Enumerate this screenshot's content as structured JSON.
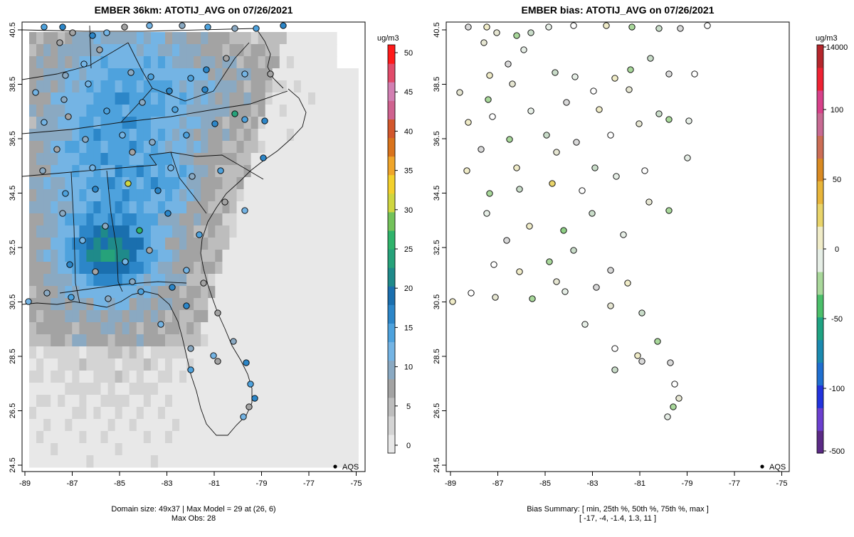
{
  "chart_data": [
    {
      "type": "heatmap",
      "title": "EMBER 36km: ATOTIJ_AVG on 07/26/2021",
      "units": "ug/m3",
      "x_ticks": [
        "-89",
        "-87",
        "-85",
        "-83",
        "-81",
        "-79",
        "-77",
        "-75"
      ],
      "y_ticks": [
        "40.5",
        "38.5",
        "36.5",
        "34.5",
        "32.5",
        "30.5",
        "28.5",
        "26.5",
        "24.5"
      ],
      "colorbar_ticks": [
        "0",
        "5",
        "10",
        "15",
        "20",
        "25",
        "30",
        "35",
        "40",
        "45",
        "50"
      ],
      "colorbar_range": [
        -1,
        51
      ],
      "colorbar_colors": [
        "#e8e8e8",
        "#d4d4d4",
        "#bdbdbd",
        "#a3a3a3",
        "#8aa9c2",
        "#74b4e4",
        "#4ea2dd",
        "#2c86c8",
        "#1a6fae",
        "#1f8a8a",
        "#26a27a",
        "#2fb36b",
        "#73c25a",
        "#cfd640",
        "#f3d02c",
        "#efa52a",
        "#d9731c",
        "#d2572c",
        "#cf628f",
        "#d27fb2",
        "#e14b6a",
        "#ff1a1a"
      ],
      "legend": "AQS",
      "footer_line1": "Domain size: 49x37 | Max Model = 29 at (26, 6)",
      "footer_line2": "Max Obs: 28",
      "domain": {
        "nx": 49,
        "ny": 37
      },
      "max_model": 29,
      "max_model_cell": [
        26,
        6
      ],
      "max_obs": 28
    },
    {
      "type": "scatter",
      "title": "EMBER bias: ATOTIJ_AVG on 07/26/2021",
      "units": "ug/m3",
      "x_ticks": [
        "-89",
        "-87",
        "-85",
        "-83",
        "-81",
        "-79",
        "-77",
        "-75"
      ],
      "y_ticks": [
        "40.5",
        "38.5",
        "36.5",
        "34.5",
        "32.5",
        "30.5",
        "28.5",
        "26.5",
        "24.5"
      ],
      "colorbar_ticks": [
        "-500",
        "-100",
        "-50",
        "0",
        "50",
        "100",
        "14000"
      ],
      "colorbar_colors": [
        "#5b2a86",
        "#6b3fcf",
        "#2233dd",
        "#1f6fd0",
        "#1a8ab0",
        "#1fa383",
        "#4bbf6a",
        "#a9d89b",
        "#e6eee6",
        "#f0ecc8",
        "#e9d46a",
        "#e8b53a",
        "#d98a22",
        "#cc6d55",
        "#c86a93",
        "#d8418a",
        "#ee2233",
        "#b5262c"
      ],
      "legend": "AQS",
      "summary_line1": "Bias Summary: [ min, 25th %, 50th %, 75th %, max ]",
      "summary_line2": "[ -17,  -4,  -1.4,  1.3,  11 ]",
      "bias_summary": {
        "min": -17,
        "p25": -4,
        "p50": -1.4,
        "p75": 1.3,
        "max": 11
      }
    }
  ]
}
